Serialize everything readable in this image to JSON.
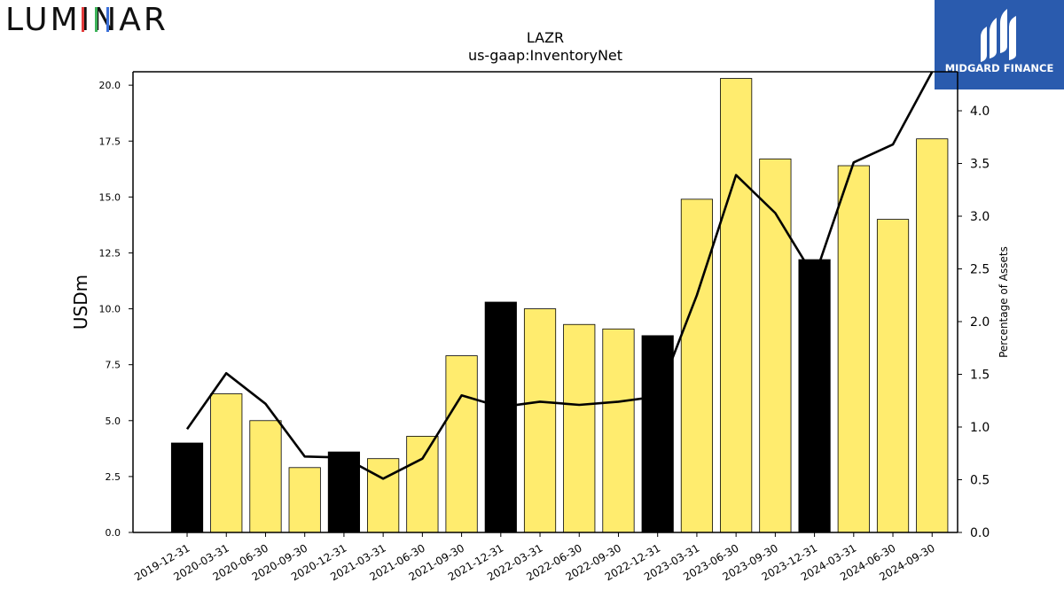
{
  "logos": {
    "left_brand": "LUMINAR",
    "right_brand": "MIDGARD FINANCE"
  },
  "chart_data": {
    "type": "bar",
    "title": "LAZR",
    "subtitle": "us-gaap:InventoryNet",
    "ylabel": "USDm",
    "y2label": "Percentage of Assets",
    "ylim": [
      0,
      20.6
    ],
    "y2lim": [
      0,
      4.37
    ],
    "yticks": [
      "0.0",
      "2.5",
      "5.0",
      "7.5",
      "10.0",
      "12.5",
      "15.0",
      "17.5",
      "20.0"
    ],
    "y2ticks": [
      "0.0",
      "0.5",
      "1.0",
      "1.5",
      "2.0",
      "2.5",
      "3.0",
      "3.5",
      "4.0"
    ],
    "categories": [
      "2019-12-31",
      "2020-03-31",
      "2020-06-30",
      "2020-09-30",
      "2020-12-31",
      "2021-03-31",
      "2021-06-30",
      "2021-09-30",
      "2021-12-31",
      "2022-03-31",
      "2022-06-30",
      "2022-09-30",
      "2022-12-31",
      "2023-03-31",
      "2023-06-30",
      "2023-09-30",
      "2023-12-31",
      "2024-03-31",
      "2024-06-30",
      "2024-09-30"
    ],
    "series": [
      {
        "type": "bar",
        "values": [
          4.0,
          6.2,
          5.0,
          2.9,
          3.6,
          3.3,
          4.3,
          7.9,
          10.3,
          10.0,
          9.3,
          9.1,
          8.8,
          14.9,
          20.3,
          16.7,
          12.2,
          16.4,
          14.0,
          17.6
        ],
        "annual_flags": [
          true,
          false,
          false,
          false,
          true,
          false,
          false,
          false,
          true,
          false,
          false,
          false,
          true,
          false,
          false,
          false,
          true,
          false,
          false,
          false
        ]
      },
      {
        "type": "line",
        "axis": "right",
        "values": [
          0.98,
          1.51,
          1.22,
          0.72,
          0.71,
          0.51,
          0.7,
          1.3,
          1.19,
          1.24,
          1.21,
          1.24,
          1.29,
          2.25,
          3.39,
          3.03,
          2.42,
          3.51,
          3.68,
          4.45
        ]
      }
    ],
    "colors": {
      "quarter_bar": "#ffec6e",
      "annual_bar": "#000000",
      "line": "#000000"
    },
    "grid": false,
    "legend": "none"
  }
}
